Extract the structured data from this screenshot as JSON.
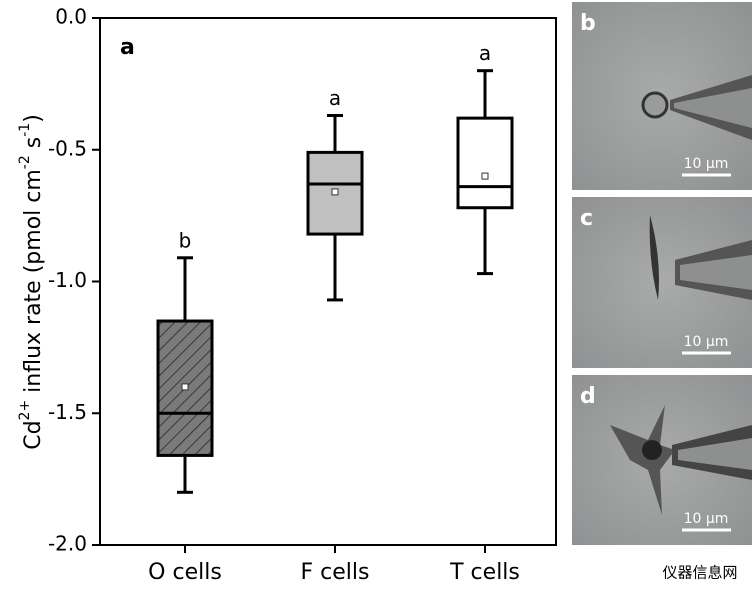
{
  "chart_data": {
    "type": "box",
    "panel_label": "a",
    "y_label": [
      "Cd",
      "2+",
      " influx rate (pmol cm",
      "-2",
      " s",
      "-1",
      ")"
    ],
    "categories": [
      "O cells",
      "F cells",
      "T cells"
    ],
    "boxes": [
      {
        "min": -1.8,
        "q1": -1.66,
        "median": -1.5,
        "q3": -1.15,
        "max": -0.91,
        "mean": -1.4,
        "color": "#7a7a7a",
        "hatch": true,
        "letter": "b"
      },
      {
        "min": -1.07,
        "q1": -0.82,
        "median": -0.63,
        "q3": -0.51,
        "max": -0.37,
        "mean": -0.66,
        "color": "#c0c0c0",
        "hatch": false,
        "letter": "a"
      },
      {
        "min": -0.97,
        "q1": -0.72,
        "median": -0.64,
        "q3": -0.38,
        "max": -0.2,
        "mean": -0.6,
        "color": "#ffffff",
        "hatch": false,
        "letter": "a"
      }
    ],
    "ylim": [
      -2,
      0
    ],
    "yticks": [
      {
        "value": 0,
        "label": "0.0"
      },
      -0.5,
      {
        "value": -1,
        "label": "-1.0"
      },
      -1.5,
      {
        "value": -2,
        "label": "-2.0"
      }
    ]
  },
  "panels": [
    {
      "label": "b",
      "scale": "10 μm"
    },
    {
      "label": "c",
      "scale": "10 μm"
    },
    {
      "label": "d",
      "scale": "10 μm"
    }
  ],
  "watermark": "仪器信息网"
}
